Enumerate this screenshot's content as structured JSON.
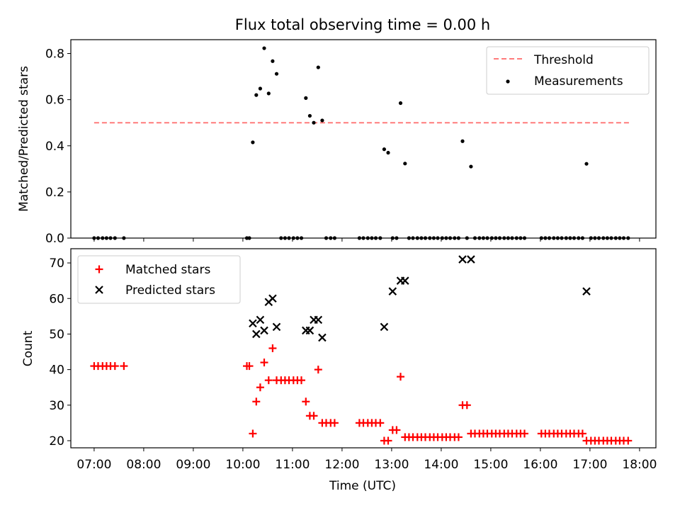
{
  "chart_data": [
    {
      "type": "scatter",
      "title": "Flux total observing time = 0.00 h",
      "ylabel": "Matched/Predicted stars",
      "xlabel": "",
      "ylim": [
        0,
        0.86
      ],
      "yticks": [
        "0.0",
        "0.2",
        "0.4",
        "0.6",
        "0.8"
      ],
      "ytick_values": [
        0.0,
        0.2,
        0.4,
        0.6,
        0.8
      ],
      "legend_position": "top-right",
      "threshold": {
        "name": "Threshold",
        "value": 0.5,
        "x_start": 7.0,
        "x_end": 17.8,
        "color": "#ff7b7b"
      },
      "series": [
        {
          "name": "Measurements",
          "color": "#000000",
          "x": [
            7.0,
            7.08,
            7.17,
            7.25,
            7.33,
            7.42,
            7.6,
            10.08,
            10.13,
            10.2,
            10.27,
            10.35,
            10.43,
            10.52,
            10.6,
            10.68,
            10.77,
            10.85,
            10.93,
            11.02,
            11.1,
            11.18,
            11.27,
            11.35,
            11.43,
            11.52,
            11.6,
            11.68,
            11.77,
            11.85,
            12.35,
            12.43,
            12.52,
            12.6,
            12.68,
            12.77,
            12.85,
            12.93,
            13.02,
            13.1,
            13.18,
            13.27,
            13.35,
            13.43,
            13.52,
            13.6,
            13.68,
            13.77,
            13.85,
            13.93,
            14.02,
            14.1,
            14.18,
            14.27,
            14.35,
            14.43,
            14.52,
            14.6,
            14.68,
            14.77,
            14.85,
            14.93,
            15.02,
            15.1,
            15.18,
            15.27,
            15.35,
            15.43,
            15.52,
            15.6,
            15.68,
            16.02,
            16.1,
            16.18,
            16.27,
            16.35,
            16.43,
            16.52,
            16.6,
            16.68,
            16.77,
            16.85,
            16.93,
            17.02,
            17.1,
            17.18,
            17.27,
            17.35,
            17.43,
            17.52,
            17.6,
            17.68,
            17.77
          ],
          "y": [
            0,
            0,
            0,
            0,
            0,
            0,
            0,
            0,
            0,
            0.415,
            0.62,
            0.648,
            0.823,
            0.627,
            0.767,
            0.712,
            0,
            0,
            0,
            0,
            0,
            0,
            0.607,
            0.53,
            0.5,
            0.74,
            0.51,
            0,
            0,
            0,
            0,
            0,
            0,
            0,
            0,
            0,
            0.385,
            0.37,
            0,
            0,
            0.585,
            0.323,
            0,
            0,
            0,
            0,
            0,
            0,
            0,
            0,
            0,
            0,
            0,
            0,
            0,
            0.42,
            0,
            0.31,
            0,
            0,
            0,
            0,
            0,
            0,
            0,
            0,
            0,
            0,
            0,
            0,
            0,
            0,
            0,
            0,
            0,
            0,
            0,
            0,
            0,
            0,
            0,
            0,
            0.322,
            0,
            0,
            0,
            0,
            0,
            0,
            0,
            0,
            0,
            0
          ]
        }
      ]
    },
    {
      "type": "scatter",
      "title": "",
      "ylabel": "Count",
      "xlabel": "Time (UTC)",
      "ylim": [
        18,
        74
      ],
      "yticks": [
        "20",
        "30",
        "40",
        "50",
        "60",
        "70"
      ],
      "ytick_values": [
        20,
        30,
        40,
        50,
        60,
        70
      ],
      "xlim": [
        6.53,
        18.33
      ],
      "xtick_values": [
        7,
        8,
        9,
        10,
        11,
        12,
        13,
        14,
        15,
        16,
        17,
        18
      ],
      "xticks": [
        "07:00",
        "08:00",
        "09:00",
        "10:00",
        "11:00",
        "12:00",
        "13:00",
        "14:00",
        "15:00",
        "16:00",
        "17:00",
        "18:00"
      ],
      "legend_position": "top-left",
      "series": [
        {
          "name": "Matched stars",
          "color": "#ff0000",
          "marker": "plus",
          "x": [
            7.0,
            7.08,
            7.17,
            7.25,
            7.33,
            7.42,
            7.6,
            10.08,
            10.13,
            10.2,
            10.27,
            10.35,
            10.43,
            10.52,
            10.6,
            10.68,
            10.77,
            10.85,
            10.93,
            11.02,
            11.1,
            11.18,
            11.27,
            11.35,
            11.43,
            11.52,
            11.6,
            11.68,
            11.77,
            11.85,
            12.35,
            12.43,
            12.52,
            12.6,
            12.68,
            12.77,
            12.85,
            12.93,
            13.02,
            13.1,
            13.18,
            13.27,
            13.35,
            13.43,
            13.52,
            13.6,
            13.68,
            13.77,
            13.85,
            13.93,
            14.02,
            14.1,
            14.18,
            14.27,
            14.35,
            14.43,
            14.52,
            14.6,
            14.68,
            14.77,
            14.85,
            14.93,
            15.02,
            15.1,
            15.18,
            15.27,
            15.35,
            15.43,
            15.52,
            15.6,
            15.68,
            16.02,
            16.1,
            16.18,
            16.27,
            16.35,
            16.43,
            16.52,
            16.6,
            16.68,
            16.77,
            16.85,
            16.93,
            17.02,
            17.1,
            17.18,
            17.27,
            17.35,
            17.43,
            17.52,
            17.6,
            17.68,
            17.77
          ],
          "y": [
            41,
            41,
            41,
            41,
            41,
            41,
            41,
            41,
            41,
            22,
            31,
            35,
            42,
            37,
            46,
            37,
            37,
            37,
            37,
            37,
            37,
            37,
            31,
            27,
            27,
            40,
            25,
            25,
            25,
            25,
            25,
            25,
            25,
            25,
            25,
            25,
            20,
            20,
            23,
            23,
            38,
            21,
            21,
            21,
            21,
            21,
            21,
            21,
            21,
            21,
            21,
            21,
            21,
            21,
            21,
            30,
            30,
            22,
            22,
            22,
            22,
            22,
            22,
            22,
            22,
            22,
            22,
            22,
            22,
            22,
            22,
            22,
            22,
            22,
            22,
            22,
            22,
            22,
            22,
            22,
            22,
            22,
            20,
            20,
            20,
            20,
            20,
            20,
            20,
            20,
            20,
            20,
            20
          ]
        },
        {
          "name": "Predicted stars",
          "color": "#000000",
          "marker": "x",
          "x": [
            10.2,
            10.27,
            10.35,
            10.43,
            10.52,
            10.6,
            10.68,
            11.27,
            11.35,
            11.43,
            11.52,
            11.6,
            12.85,
            13.02,
            13.18,
            13.27,
            14.43,
            14.6,
            16.93
          ],
          "y": [
            53,
            50,
            54,
            51,
            59,
            60,
            52,
            51,
            51,
            54,
            54,
            49,
            52,
            62,
            65,
            65,
            71,
            71,
            62
          ]
        }
      ]
    }
  ]
}
